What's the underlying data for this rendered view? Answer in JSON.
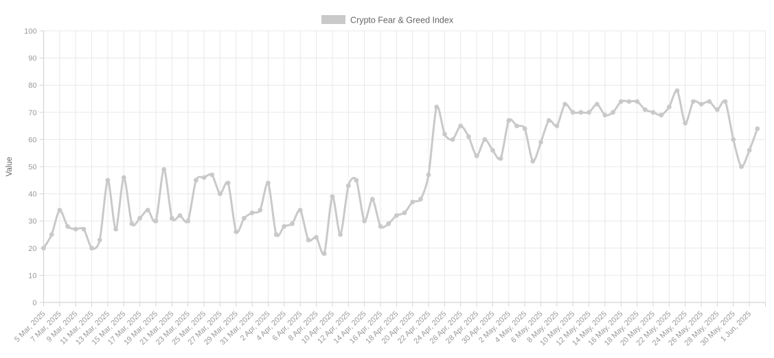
{
  "legend": {
    "label": "Crypto Fear & Greed Index",
    "swatch_color": "#c9c9c9"
  },
  "y_axis": {
    "title": "Value",
    "tick_labels": [
      "0",
      "10",
      "20",
      "30",
      "40",
      "50",
      "60",
      "70",
      "80",
      "90",
      "100"
    ],
    "min": 0,
    "max": 100,
    "tick_step": 10
  },
  "x_axis": {
    "tick_labels": [
      "5 Mar, 2025",
      "7 Mar, 2025",
      "9 Mar, 2025",
      "11 Mar, 2025",
      "13 Mar, 2025",
      "15 Mar, 2025",
      "17 Mar, 2025",
      "19 Mar, 2025",
      "21 Mar, 2025",
      "23 Mar, 2025",
      "25 Mar, 2025",
      "27 Mar, 2025",
      "29 Mar, 2025",
      "31 Mar, 2025",
      "2 Apr, 2025",
      "4 Apr, 2025",
      "6 Apr, 2025",
      "8 Apr, 2025",
      "10 Apr, 2025",
      "12 Apr, 2025",
      "14 Apr, 2025",
      "16 Apr, 2025",
      "18 Apr, 2025",
      "20 Apr, 2025",
      "22 Apr, 2025",
      "24 Apr, 2025",
      "26 Apr, 2025",
      "28 Apr, 2025",
      "30 Apr, 2025",
      "2 May, 2025",
      "4 May, 2025",
      "6 May, 2025",
      "8 May, 2025",
      "10 May, 2025",
      "12 May, 2025",
      "14 May, 2025",
      "16 May, 2025",
      "18 May, 2025",
      "20 May, 2025",
      "22 May, 2025",
      "24 May, 2025",
      "26 May, 2025",
      "28 May, 2025",
      "30 May, 2025",
      "1 Jun, 2025"
    ]
  },
  "chart_data": {
    "type": "line",
    "title": "Crypto Fear & Greed Index",
    "xlabel": "",
    "ylabel": "Value",
    "ylim": [
      0,
      100
    ],
    "grid": true,
    "legend_position": "top-center",
    "x_interval": "daily",
    "x": [
      "5 Mar 2025",
      "6 Mar 2025",
      "7 Mar 2025",
      "8 Mar 2025",
      "9 Mar 2025",
      "10 Mar 2025",
      "11 Mar 2025",
      "12 Mar 2025",
      "13 Mar 2025",
      "14 Mar 2025",
      "15 Mar 2025",
      "16 Mar 2025",
      "17 Mar 2025",
      "18 Mar 2025",
      "19 Mar 2025",
      "20 Mar 2025",
      "21 Mar 2025",
      "22 Mar 2025",
      "23 Mar 2025",
      "24 Mar 2025",
      "25 Mar 2025",
      "26 Mar 2025",
      "27 Mar 2025",
      "28 Mar 2025",
      "29 Mar 2025",
      "30 Mar 2025",
      "31 Mar 2025",
      "1 Apr 2025",
      "2 Apr 2025",
      "3 Apr 2025",
      "4 Apr 2025",
      "5 Apr 2025",
      "6 Apr 2025",
      "7 Apr 2025",
      "8 Apr 2025",
      "9 Apr 2025",
      "10 Apr 2025",
      "11 Apr 2025",
      "12 Apr 2025",
      "13 Apr 2025",
      "14 Apr 2025",
      "15 Apr 2025",
      "16 Apr 2025",
      "17 Apr 2025",
      "18 Apr 2025",
      "19 Apr 2025",
      "20 Apr 2025",
      "21 Apr 2025",
      "22 Apr 2025",
      "23 Apr 2025",
      "24 Apr 2025",
      "25 Apr 2025",
      "26 Apr 2025",
      "27 Apr 2025",
      "28 Apr 2025",
      "29 Apr 2025",
      "30 Apr 2025",
      "1 May 2025",
      "2 May 2025",
      "3 May 2025",
      "4 May 2025",
      "5 May 2025",
      "6 May 2025",
      "7 May 2025",
      "8 May 2025",
      "9 May 2025",
      "10 May 2025",
      "11 May 2025",
      "12 May 2025",
      "13 May 2025",
      "14 May 2025",
      "15 May 2025",
      "16 May 2025",
      "17 May 2025",
      "18 May 2025",
      "19 May 2025",
      "20 May 2025",
      "21 May 2025",
      "22 May 2025",
      "23 May 2025",
      "24 May 2025",
      "25 May 2025",
      "26 May 2025",
      "27 May 2025",
      "28 May 2025",
      "29 May 2025",
      "30 May 2025",
      "31 May 2025",
      "1 Jun 2025",
      "2 Jun 2025"
    ],
    "series": [
      {
        "name": "Crypto Fear & Greed Index",
        "color": "#c9c9c9",
        "values": [
          20,
          25,
          34,
          28,
          27,
          27,
          20,
          23,
          45,
          27,
          46,
          29,
          31,
          34,
          30,
          49,
          31,
          32,
          30,
          45,
          46,
          47,
          40,
          44,
          26,
          31,
          33,
          34,
          44,
          25,
          28,
          29,
          34,
          23,
          24,
          18,
          39,
          25,
          43,
          45,
          30,
          38,
          28,
          29,
          32,
          33,
          37,
          38,
          47,
          72,
          62,
          60,
          65,
          61,
          54,
          60,
          56,
          53,
          67,
          65,
          64,
          52,
          59,
          67,
          65,
          73,
          70,
          70,
          70,
          73,
          69,
          70,
          74,
          74,
          74,
          71,
          70,
          69,
          72,
          78,
          66,
          74,
          73,
          74,
          71,
          74,
          60,
          50,
          56,
          64
        ]
      }
    ]
  },
  "colors": {
    "series": "#c9c9c9",
    "grid": "#e8e8e8",
    "axis": "#d4d4d4",
    "tick_text": "#999999",
    "label_text": "#666666",
    "background": "#ffffff"
  }
}
